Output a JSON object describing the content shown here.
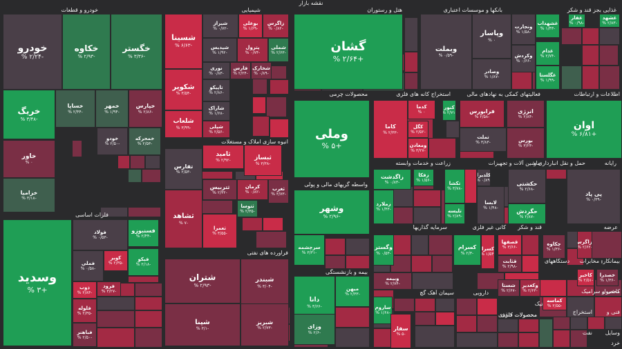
{
  "map_title": "نقشه بازار",
  "colors": {
    "dg": "#1f9e55",
    "mg": "#2f7a4f",
    "lg": "#3f5f4e",
    "gr": "#4a3f48",
    "dr": "#7a2f45",
    "mr": "#a32a44",
    "br": "#c92c48"
  },
  "sectors": [
    "خودرو و قطعات",
    "شیمیایی",
    "هتل و رستوران",
    "بانکها و موسسات اعتباری",
    "غذایی بجز قند و شکر",
    "فلزات اساسی",
    "انبوه سازی املاک و مستغلات",
    "محصولات چرمی",
    "استخراج کانه های فلزی",
    "فعالیتهای کمکی به نهادهای مالی",
    "اطلاعات و ارتباطات",
    "زراعت و خدمات وابسته",
    "ماشین آلات و تجهیزات",
    "حمل و نقل انبارداری و",
    "رایانه",
    "واسطه گریهای مالی و پولی",
    "فراورده های نفتی",
    "سرمایه گذاریها",
    "کانی غیر فلزی",
    "قند و شکر",
    "محصولات کاغذی",
    "عرضه",
    "بیمه و بازنشستگی",
    "دستگاههای",
    "مخابرات",
    "بیمانکاری",
    "سیمان آهک گچ",
    "دارویی",
    "محصولات فلزی",
    "لاستیک",
    "کاشی و سرامیک",
    "محصول",
    "استخراج",
    "فنی و",
    "وسایل",
    "نفت",
    "خرد"
  ],
  "tiles": [
    {
      "name": "خودرو",
      "pct": "-۲/۲۴ %"
    },
    {
      "name": "خکاوه",
      "pct": "-۲/۹۳ %"
    },
    {
      "name": "خگستر",
      "pct": "-۳/۳۶ %"
    },
    {
      "name": "خریگ",
      "pct": "-۳/۴۸ %"
    },
    {
      "name": "خساپا",
      "pct": "-۲/۴۴ %"
    },
    {
      "name": "خمهر",
      "pct": "-۱/۹۴ %"
    },
    {
      "name": "خپارس",
      "pct": "-۲/۸۶ %"
    },
    {
      "name": "خاور",
      "pct": "۰ %"
    },
    {
      "name": "خمحرکه",
      "pct": "-۲/۵۳ %"
    },
    {
      "name": "خودو",
      "pct": "-۲/۵۰ %"
    },
    {
      "name": "خزامیا",
      "pct": "-۳/۱۸ %"
    },
    {
      "name": "شسینا",
      "pct": "-۶/۶۳ %"
    },
    {
      "name": "شکویر",
      "pct": "-۳/۵۴ %"
    },
    {
      "name": "شلعاب",
      "pct": "-۳/۹۹ %"
    },
    {
      "name": "شیراز",
      "pct": "-۰/۷۲ %"
    },
    {
      "name": "بوعلی",
      "pct": "-۱/۶۹ %"
    },
    {
      "name": "زاگرس",
      "pct": "-۰/۸۲ %"
    },
    {
      "name": "شپدیس",
      "pct": "-۱/۹۲ %"
    },
    {
      "name": "پترول",
      "pct": "-۰/۷۴ %"
    },
    {
      "name": "شملی",
      "pct": "-۲/۶۳ %"
    },
    {
      "name": "نوری",
      "pct": "-۰/۸۳ %"
    },
    {
      "name": "فارس",
      "pct": "-۲/۲۴ %"
    },
    {
      "name": "شخارک",
      "pct": "-۰/۸۹ %"
    },
    {
      "name": "تاپیکو",
      "pct": "-۲/۸۶ %"
    },
    {
      "name": "شاراک",
      "pct": "-۱/۶۸ %"
    },
    {
      "name": "شپلی",
      "pct": "-۲/۵۶ %"
    },
    {
      "name": "گشان",
      "pct": "+۲/۶۴ %"
    },
    {
      "name": "وبملت",
      "pct": "-۰/۵۹ %"
    },
    {
      "name": "وپاسار",
      "pct": "۰ %"
    },
    {
      "name": "ونجارت",
      "pct": "-۱/۵۸ %"
    },
    {
      "name": "وصادر",
      "pct": "-۱/۸۷ %"
    },
    {
      "name": "وکردش",
      "pct": "-۰/۶۶ %"
    },
    {
      "name": "غشهداب",
      "pct": "-۱/۴۳ %"
    },
    {
      "name": "غدام",
      "pct": "-۲/۷۴ %"
    },
    {
      "name": "غگلستا",
      "pct": "-۱/۹۹ %"
    },
    {
      "name": "غشهد",
      "pct": "-۲/۸۳ %"
    },
    {
      "name": "غفار",
      "pct": "-۰/۹۸ %"
    },
    {
      "name": "وسدید",
      "pct": "+۳ %"
    },
    {
      "name": "فولاد",
      "pct": "-۰/۵۳ %"
    },
    {
      "name": "فسنبوزو",
      "pct": "-۲/۴۴ %"
    },
    {
      "name": "فملی",
      "pct": "-۰/۵۸ %"
    },
    {
      "name": "کویر",
      "pct": "-۲/۳۵ %"
    },
    {
      "name": "فیکو",
      "pct": "-۲/۱۸ %"
    },
    {
      "name": "ذوب",
      "pct": "-۲/۸۳ %"
    },
    {
      "name": "فرود",
      "pct": "-۳/۲۷ %"
    },
    {
      "name": "فلوله",
      "pct": "-۲/۳۵ %"
    },
    {
      "name": "فباهنر",
      "pct": "-۲/۵۰ %"
    },
    {
      "name": "تفارس",
      "pct": "-۲/۵۳ %"
    },
    {
      "name": "ثامید",
      "pct": "-۲/۹۲ %"
    },
    {
      "name": "ثبساز",
      "pct": "-۳/۳۸ %"
    },
    {
      "name": "کرمان",
      "pct": "-۰/۸۲ %"
    },
    {
      "name": "ثتوسا",
      "pct": "-۲/۳۵ %"
    },
    {
      "name": "ثشاهد",
      "pct": "-۷ %"
    },
    {
      "name": "ثعمرا",
      "pct": "-۳/۵۵ %"
    },
    {
      "name": "ثتربیس",
      "pct": "-۲/۳۲ %"
    },
    {
      "name": "ثغرب",
      "pct": "-۳/۷۳ %"
    },
    {
      "name": "وملی",
      "pct": "+۵ %"
    },
    {
      "name": "کاما",
      "pct": "-۲/۳۳ %"
    },
    {
      "name": "کدما",
      "pct": "۰ %"
    },
    {
      "name": "کگل",
      "pct": "-۲/۵۲ %"
    },
    {
      "name": "ومعادن",
      "pct": "-۳/۲۷ %"
    },
    {
      "name": "کنور",
      "pct": "-۲/۷۱ %"
    },
    {
      "name": "فرابورس",
      "pct": "-۲/۵۸ %"
    },
    {
      "name": "تملت",
      "pct": "-۳/۸۳ %"
    },
    {
      "name": "انرژی",
      "pct": "-۲/۸۴ %"
    },
    {
      "name": "بورس",
      "pct": "-۳/۲۳ %"
    },
    {
      "name": "اوان",
      "pct": "+۶/۸۱ %"
    },
    {
      "name": "زاگدشت",
      "pct": "-۰/۸۳ %"
    },
    {
      "name": "زملارد",
      "pct": "-۱/۴۳ %"
    },
    {
      "name": "زفکا",
      "pct": "-۱/۵۶ %"
    },
    {
      "name": "تکشا",
      "pct": "-۳/۷۸ %"
    },
    {
      "name": "تلیسه",
      "pct": "-۲/۸۹ %"
    },
    {
      "name": "کلدیرا",
      "pct": "-۰/۸۹ %"
    },
    {
      "name": "لابسا",
      "pct": "-۱/۴۸ %"
    },
    {
      "name": "حکشتی",
      "pct": "-۲/۶۸ %"
    },
    {
      "name": "حگردش",
      "pct": "-۲/۸۷ %"
    },
    {
      "name": "پی پاد",
      "pct": "-۰/۳۹ %"
    },
    {
      "name": "وشهر",
      "pct": "-۲/۹۶ %"
    },
    {
      "name": "شتران",
      "pct": "-۲/۹۳ %"
    },
    {
      "name": "شبندر",
      "pct": "-۳/۰۴ %"
    },
    {
      "name": "شپنا",
      "pct": "-۳/۱ %"
    },
    {
      "name": "شبریز",
      "pct": "-۲/۷۳ %"
    },
    {
      "name": "سرچشمه",
      "pct": "-۳/۳۱ %"
    },
    {
      "name": "وگستر",
      "pct": "-۰/۵۳ %"
    },
    {
      "name": "وبیمه",
      "pct": "-۲/۷۴ %"
    },
    {
      "name": "کسرام",
      "pct": "-۲/۳ %"
    },
    {
      "name": "کسرا",
      "pct": "-۱/۵۴ %"
    },
    {
      "name": "قصفها",
      "pct": "-۳/۶۶ %"
    },
    {
      "name": "قثابت",
      "pct": "-۲/۹۸ %"
    },
    {
      "name": "کگازیر",
      "pct": "-۰/۸ %"
    },
    {
      "name": "چکاوه",
      "pct": "-۱/۳۶ %"
    },
    {
      "name": "بزاگرس",
      "pct": "-۲/۶۲ %"
    },
    {
      "name": "کاخیر",
      "pct": "-۲/۵۱ %"
    },
    {
      "name": "خصدرا",
      "pct": "-۱/۳۶ %"
    },
    {
      "name": "دانا",
      "pct": "-۳/۶۶ %"
    },
    {
      "name": "میهن",
      "pct": "-۲/۳۳ %"
    },
    {
      "name": "وزای",
      "pct": "-۲/۶ %"
    },
    {
      "name": "ساروم",
      "pct": "-۱/۶۸ %"
    },
    {
      "name": "سفار",
      "pct": "-۵ %"
    },
    {
      "name": "شستا",
      "pct": "-۲/۶۷ %"
    },
    {
      "name": "وکغدیر",
      "pct": "-۲/۶۳ %"
    },
    {
      "name": "کماسه",
      "pct": "-۲/۵۵ %"
    }
  ]
}
